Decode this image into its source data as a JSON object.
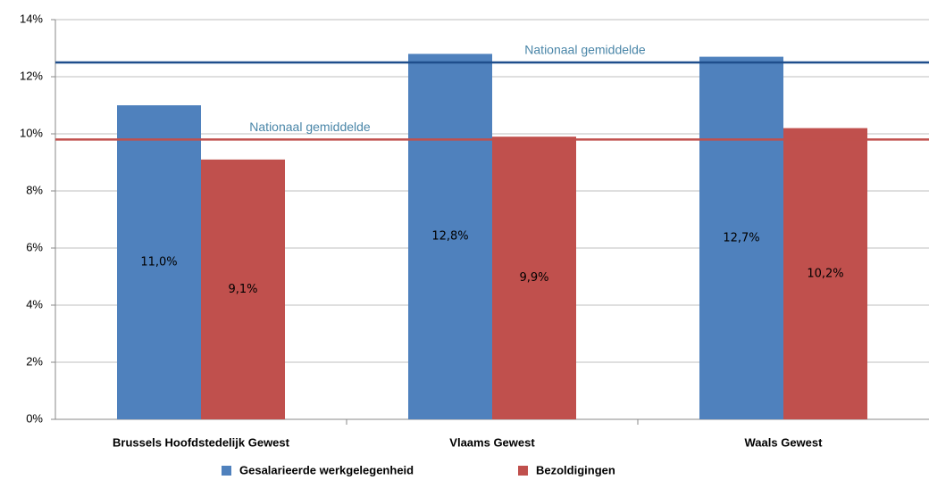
{
  "chart_data": {
    "type": "bar",
    "categories": [
      "Brussels Hoofdstedelijk Gewest",
      "Vlaams Gewest",
      "Waals Gewest"
    ],
    "series": [
      {
        "name": "Gesalarieerde werkgelegenheid",
        "color": "#4f81bd",
        "values": [
          11.0,
          12.8,
          12.7
        ],
        "value_labels": [
          "11,0%",
          "12,8%",
          "12,7%"
        ]
      },
      {
        "name": "Bezoldigingen",
        "color": "#c0504d",
        "values": [
          9.1,
          9.9,
          10.2
        ],
        "value_labels": [
          "9,1%",
          "9,9%",
          "10,2%"
        ]
      }
    ],
    "reference_lines": [
      {
        "value": 12.5,
        "label": "Nationaal gemiddelde",
        "color": "#1f4e8c"
      },
      {
        "value": 9.8,
        "label": "Nationaal gemiddelde",
        "color": "#c0504d"
      }
    ],
    "ylim": [
      0,
      14
    ],
    "yticks": [
      {
        "value": 0,
        "label": "0%"
      },
      {
        "value": 2,
        "label": "2%"
      },
      {
        "value": 4,
        "label": "4%"
      },
      {
        "value": 6,
        "label": "6%"
      },
      {
        "value": 8,
        "label": "8%"
      },
      {
        "value": 10,
        "label": "10%"
      },
      {
        "value": 12,
        "label": "12%"
      },
      {
        "value": 14,
        "label": "14%"
      }
    ],
    "grid": true,
    "legend": "bottom"
  }
}
